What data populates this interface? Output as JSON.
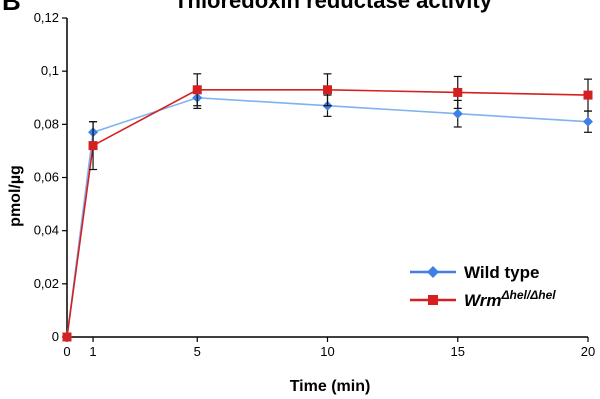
{
  "chart_data": {
    "type": "line",
    "panel_letter": "B",
    "title": "Thioredoxin reductase activity",
    "xlabel": "Time (min)",
    "ylabel": "pmol/µg",
    "xlim": [
      0,
      20
    ],
    "ylim": [
      0,
      0.12
    ],
    "x_ticks": [
      "0",
      "1",
      "5",
      "10",
      "15",
      "20"
    ],
    "y_ticks": [
      "0",
      "0,02",
      "0,04",
      "0,06",
      "0,08",
      "0,1",
      "0,12"
    ],
    "x": [
      0,
      1,
      5,
      10,
      15,
      20
    ],
    "grid": false,
    "legend_position": "bottom-right",
    "series": [
      {
        "name": "Wild type",
        "color": "#3f7fe8",
        "line_color": "#7fb2ef",
        "marker": "diamond",
        "values": [
          0,
          0.077,
          0.09,
          0.087,
          0.084,
          0.081
        ],
        "errors": [
          0,
          0.004,
          0.004,
          0.004,
          0.005,
          0.004
        ]
      },
      {
        "name_main": "Wrm",
        "name_sup": "Δhel/Δhel",
        "color": "#d42020",
        "line_color": "#d42020",
        "marker": "square",
        "values": [
          0,
          0.072,
          0.093,
          0.093,
          0.092,
          0.091
        ],
        "errors": [
          0,
          0.009,
          0.006,
          0.006,
          0.006,
          0.006
        ]
      }
    ]
  }
}
